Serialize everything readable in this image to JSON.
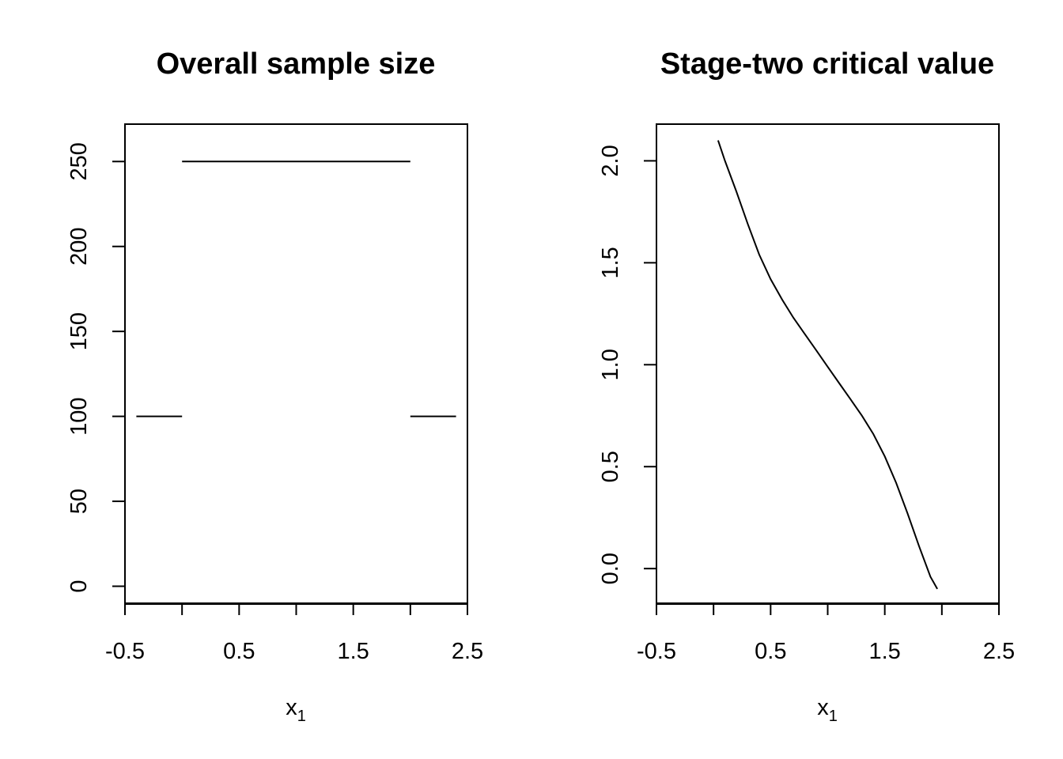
{
  "chart_data": [
    {
      "type": "line",
      "title": "Overall sample size",
      "xlabel": "x",
      "xlabel_subscript": "1",
      "ylabel": "",
      "xlim": [
        -0.5,
        2.5
      ],
      "ylim": [
        -10,
        272
      ],
      "x_ticks": [
        -0.5,
        0,
        0.5,
        1,
        1.5,
        2,
        2.5
      ],
      "x_tick_labels": [
        "-0.5",
        "",
        "0.5",
        "",
        "1.5",
        "",
        "2.5"
      ],
      "y_ticks": [
        0,
        50,
        100,
        150,
        200,
        250
      ],
      "y_tick_labels": [
        "0",
        "50",
        "100",
        "150",
        "200",
        "250"
      ],
      "grid": false,
      "series": [
        {
          "x": [
            -0.4,
            0
          ],
          "y": [
            100,
            100
          ]
        },
        {
          "x": [
            0,
            2
          ],
          "y": [
            250,
            250
          ]
        },
        {
          "x": [
            2,
            2.4
          ],
          "y": [
            100,
            100
          ]
        }
      ]
    },
    {
      "type": "line",
      "title": "Stage-two critical value",
      "xlabel": "x",
      "xlabel_subscript": "1",
      "ylabel": "",
      "xlim": [
        -0.5,
        2.5
      ],
      "ylim": [
        -0.17,
        2.18
      ],
      "x_ticks": [
        -0.5,
        0,
        0.5,
        1,
        1.5,
        2,
        2.5
      ],
      "x_tick_labels": [
        "-0.5",
        "",
        "0.5",
        "",
        "1.5",
        "",
        "2.5"
      ],
      "y_ticks": [
        0,
        0.5,
        1,
        1.5,
        2
      ],
      "y_tick_labels": [
        "0.0",
        "0.5",
        "1.0",
        "1.5",
        "2.0"
      ],
      "grid": false,
      "series": [
        {
          "x": [
            0.04,
            0.1,
            0.2,
            0.3,
            0.4,
            0.5,
            0.6,
            0.7,
            0.8,
            0.9,
            1.0,
            1.1,
            1.2,
            1.3,
            1.4,
            1.5,
            1.6,
            1.7,
            1.8,
            1.9,
            1.96
          ],
          "y": [
            2.1,
            2.0,
            1.85,
            1.69,
            1.54,
            1.42,
            1.32,
            1.23,
            1.15,
            1.07,
            0.99,
            0.91,
            0.83,
            0.75,
            0.66,
            0.55,
            0.42,
            0.27,
            0.11,
            -0.04,
            -0.1
          ]
        }
      ]
    }
  ]
}
